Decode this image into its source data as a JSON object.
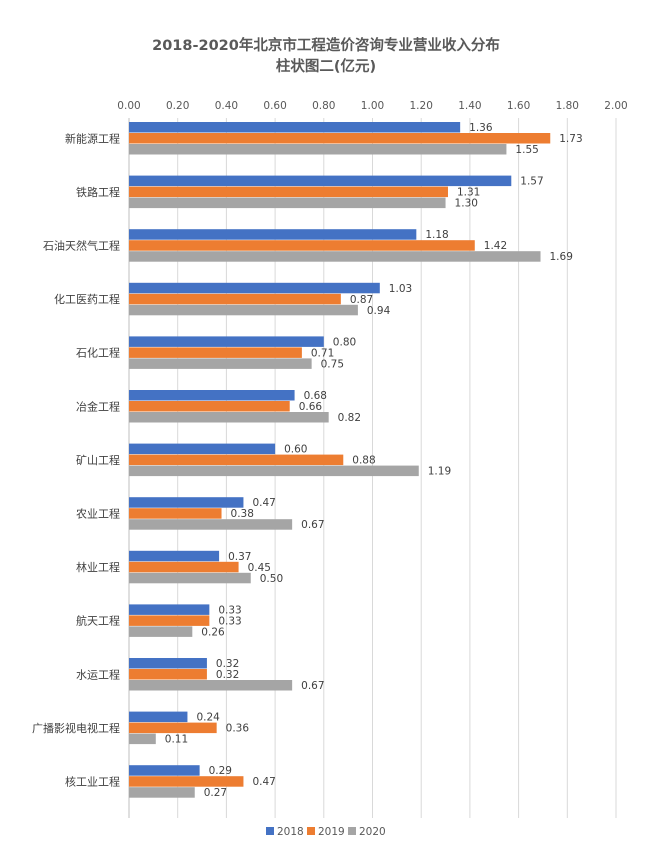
{
  "chart_data": {
    "type": "bar",
    "orientation": "horizontal",
    "title": "2018-2020年北京市工程造价咨询专业营业收入分布",
    "subtitle": "柱状图二(亿元)",
    "xlabel": "",
    "ylabel": "",
    "xlim": [
      0,
      2.0
    ],
    "x_ticks": [
      "0.00",
      "0.20",
      "0.40",
      "0.60",
      "0.80",
      "1.00",
      "1.20",
      "1.40",
      "1.60",
      "1.80",
      "2.00"
    ],
    "x_axis_position": "top",
    "grid": true,
    "legend_position": "bottom",
    "categories": [
      "新能源工程",
      "铁路工程",
      "石油天然气工程",
      "化工医药工程",
      "石化工程",
      "冶金工程",
      "矿山工程",
      "农业工程",
      "林业工程",
      "航天工程",
      "水运工程",
      "广播影视电视工程",
      "核工业工程"
    ],
    "series": [
      {
        "name": "2018",
        "color": "#4472c4",
        "values": [
          1.36,
          1.57,
          1.18,
          1.03,
          0.8,
          0.68,
          0.6,
          0.47,
          0.37,
          0.33,
          0.32,
          0.24,
          0.29
        ]
      },
      {
        "name": "2019",
        "color": "#ed7d31",
        "values": [
          1.73,
          1.31,
          1.42,
          0.87,
          0.71,
          0.66,
          0.88,
          0.38,
          0.45,
          0.33,
          0.32,
          0.36,
          0.47
        ]
      },
      {
        "name": "2020",
        "color": "#a5a5a5",
        "values": [
          1.55,
          1.3,
          1.69,
          0.94,
          0.75,
          0.82,
          1.19,
          0.67,
          0.5,
          0.26,
          0.67,
          0.11,
          0.27
        ]
      }
    ]
  }
}
